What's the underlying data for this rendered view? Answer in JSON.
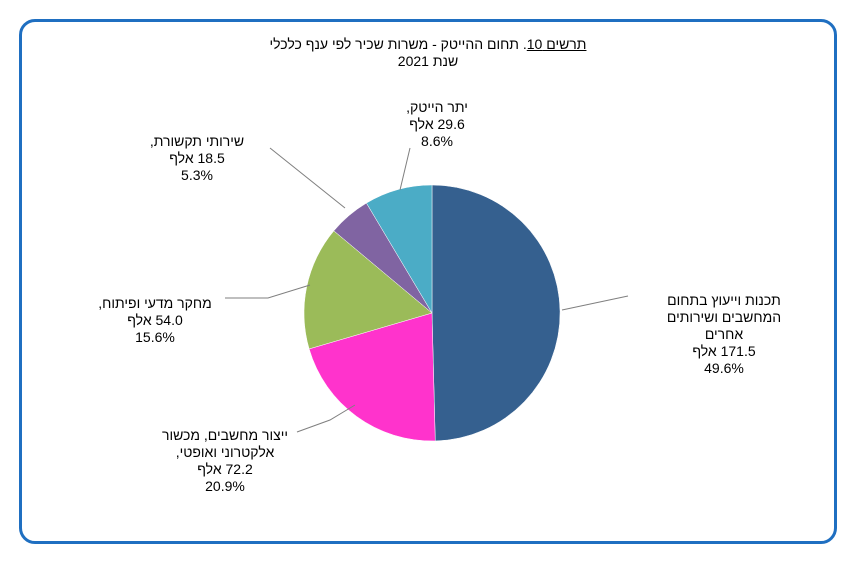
{
  "chart_data": {
    "type": "pie",
    "title_number": "תרשים 10",
    "title_text": ". תחום ההייטק - משרות שכיר לפי ענף כלכלי",
    "subtitle": "שנת 2021",
    "slices": [
      {
        "name_lines": [
          "תכנות וייעוץ  בתחום",
          "המחשבים ושירותים",
          "אחרים"
        ],
        "value_label": "171.5 אלף",
        "value": 171.5,
        "percent": "49.6%",
        "color": "#35608f"
      },
      {
        "name_lines": [
          "ייצור מחשבים, מכשור",
          "אלקטרוני ואופטי,"
        ],
        "value_label": "72.2 אלף",
        "value": 72.2,
        "percent": "20.9%",
        "color": "#ff33cc"
      },
      {
        "name_lines": [
          "מחקר מדעי ופיתוח,"
        ],
        "value_label": "54.0 אלף",
        "value": 54.0,
        "percent": "15.6%",
        "color": "#9bbb59"
      },
      {
        "name_lines": [
          "שירותי תקשורת,"
        ],
        "value_label": "18.5 אלף",
        "value": 18.5,
        "percent": "5.3%",
        "color": "#8064a2"
      },
      {
        "name_lines": [
          "יתר הייטק,"
        ],
        "value_label": "29.6 אלף",
        "value": 29.6,
        "percent": "8.6%",
        "color": "#4bacc6"
      }
    ]
  }
}
